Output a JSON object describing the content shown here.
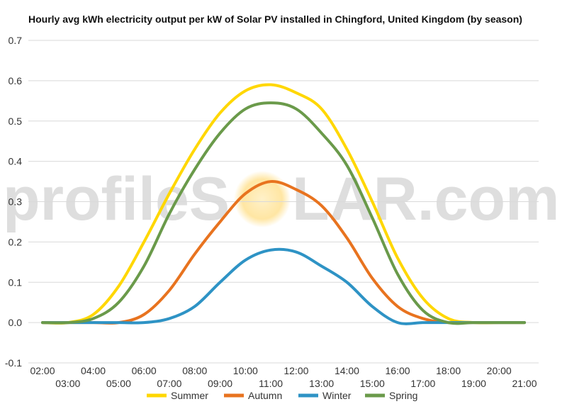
{
  "chart_data": {
    "type": "line",
    "title": "Hourly avg kWh electricity output per kW of Solar PV installed in Chingford, United Kingdom (by season)",
    "xlabel": "",
    "ylabel": "",
    "ylim": [
      -0.1,
      0.7
    ],
    "yticks": [
      "-0.1",
      "0.0",
      "0.1",
      "0.2",
      "0.3",
      "0.4",
      "0.5",
      "0.6",
      "0.7"
    ],
    "ytick_values": [
      -0.1,
      0,
      0.1,
      0.2,
      0.3,
      0.4,
      0.5,
      0.6,
      0.7
    ],
    "x": [
      2,
      3,
      4,
      5,
      6,
      7,
      8,
      9,
      10,
      11,
      12,
      13,
      14,
      15,
      16,
      17,
      18,
      19,
      20,
      21
    ],
    "xlim": [
      2,
      21
    ],
    "xticks_top": [
      "02:00",
      "04:00",
      "06:00",
      "08:00",
      "10:00",
      "12:00",
      "14:00",
      "16:00",
      "18:00",
      "20:00"
    ],
    "xticks_top_values": [
      2,
      4,
      6,
      8,
      10,
      12,
      14,
      16,
      18,
      20
    ],
    "xticks_bottom": [
      "03:00",
      "05:00",
      "07:00",
      "09:00",
      "11:00",
      "13:00",
      "15:00",
      "17:00",
      "19:00",
      "21:00"
    ],
    "xticks_bottom_values": [
      3,
      5,
      7,
      9,
      11,
      13,
      15,
      17,
      19,
      21
    ],
    "grid": true,
    "legend_position": "bottom",
    "series": [
      {
        "name": "Summer",
        "color": "#FFD700",
        "values": [
          0,
          0,
          0.02,
          0.09,
          0.2,
          0.32,
          0.43,
          0.52,
          0.575,
          0.59,
          0.57,
          0.53,
          0.43,
          0.3,
          0.16,
          0.06,
          0.01,
          0,
          0,
          0
        ]
      },
      {
        "name": "Autumn",
        "color": "#E8731F",
        "values": [
          0,
          0,
          0,
          0,
          0.02,
          0.08,
          0.17,
          0.25,
          0.32,
          0.35,
          0.33,
          0.29,
          0.21,
          0.11,
          0.04,
          0.01,
          0,
          0,
          0,
          0
        ]
      },
      {
        "name": "Winter",
        "color": "#2E93C5",
        "values": [
          0,
          0,
          0,
          0,
          0,
          0.01,
          0.04,
          0.1,
          0.155,
          0.18,
          0.175,
          0.14,
          0.1,
          0.04,
          0,
          0,
          0,
          0,
          0,
          0
        ]
      },
      {
        "name": "Spring",
        "color": "#6A9A4A",
        "values": [
          0,
          0,
          0.01,
          0.05,
          0.14,
          0.27,
          0.38,
          0.47,
          0.53,
          0.545,
          0.53,
          0.47,
          0.39,
          0.26,
          0.12,
          0.03,
          0,
          0,
          0,
          0
        ]
      }
    ]
  },
  "watermark": {
    "text_left": "profileS",
    "text_right": "LAR.com",
    "sun_color": "#FFE9A8",
    "text_color": "#D9D9D9"
  }
}
